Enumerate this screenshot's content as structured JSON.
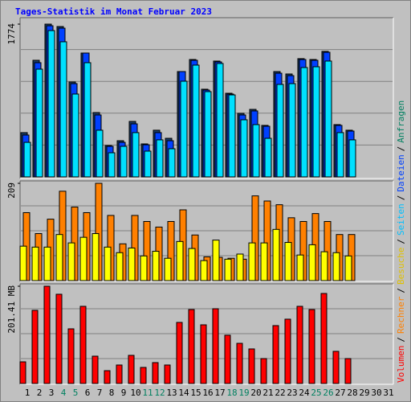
{
  "chart_data": {
    "type": "bar",
    "title": "Tages-Statistik im Monat Februar 2023",
    "title_color": "#0000ff",
    "categories": [
      "1",
      "2",
      "3",
      "4",
      "5",
      "6",
      "7",
      "8",
      "9",
      "10",
      "11",
      "12",
      "13",
      "14",
      "15",
      "16",
      "17",
      "18",
      "19",
      "20",
      "21",
      "22",
      "23",
      "24",
      "25",
      "26",
      "27",
      "28",
      "29",
      "30",
      "31"
    ],
    "category_colors": [
      "#000000",
      "#000000",
      "#000000",
      "#008060",
      "#008060",
      "#000000",
      "#000000",
      "#000000",
      "#000000",
      "#000000",
      "#008060",
      "#008060",
      "#000000",
      "#000000",
      "#000000",
      "#000000",
      "#000000",
      "#008060",
      "#008060",
      "#000000",
      "#000000",
      "#000000",
      "#000000",
      "#000000",
      "#008060",
      "#008060",
      "#000000",
      "#000000",
      "#000000",
      "#000000",
      "#000000"
    ],
    "grid": true,
    "legend_separator": "/",
    "legend_order": [
      [
        2,
        0
      ],
      [
        1,
        0
      ],
      [
        1,
        1
      ],
      [
        0,
        2
      ],
      [
        0,
        1
      ],
      [
        0,
        0
      ]
    ],
    "panels": [
      {
        "ylim": [
          0,
          1774
        ],
        "yticks": [
          1774
        ],
        "series": [
          {
            "name": "Anfragen",
            "color": "#1a3c64",
            "text_color": "#008060",
            "values": [
              514,
              1354,
              1774,
              1746,
              1102,
              1438,
              747,
              364,
              420,
              644,
              383,
              542,
              448,
              1223,
              1363,
              1018,
              1345,
              971,
              738,
              784,
              598,
              1223,
              1195,
              1373,
              1363,
              1457,
              607,
              542,
              null,
              null,
              null
            ]
          },
          {
            "name": "Dateien",
            "color": "#0040ff",
            "text_color": "#0040ff",
            "values": [
              486,
              1326,
              1755,
              1727,
              1083,
              1438,
              719,
              355,
              401,
              616,
              373,
              514,
              420,
              1223,
              1354,
              1008,
              1335,
              962,
              719,
              766,
              588,
              1204,
              1176,
              1363,
              1354,
              1447,
              598,
              532,
              null,
              null,
              null
            ]
          },
          {
            "name": "Seiten",
            "color": "#00e0ff",
            "text_color": "#00c0ff",
            "values": [
              401,
              1251,
              1699,
              1569,
              962,
              1326,
              542,
              280,
              355,
              514,
              299,
              430,
              327,
              1111,
              1298,
              990,
              1317,
              952,
              663,
              607,
              448,
              1074,
              1083,
              1270,
              1279,
              1345,
              514,
              430,
              null,
              null,
              null
            ]
          }
        ]
      },
      {
        "ylim": [
          0,
          209
        ],
        "yticks": [
          209
        ],
        "series": [
          {
            "name": "Rechner",
            "color": "#ff8000",
            "text_color": "#ff8000",
            "values": [
              146,
              101,
              132,
              192,
              158,
              146,
              209,
              140,
              79,
              140,
              127,
              115,
              127,
              152,
              98,
              51,
              50,
              48,
              46,
              182,
              171,
              163,
              135,
              127,
              144,
              127,
              99,
              99,
              null,
              null,
              null
            ]
          },
          {
            "name": "Besuche",
            "color": "#ffff00",
            "text_color": "#e0c000",
            "values": [
              74,
              72,
              72,
              99,
              81,
              93,
              101,
              72,
              60,
              70,
              53,
              63,
              48,
              84,
              69,
              43,
              87,
              46,
              57,
              81,
              81,
              110,
              82,
              55,
              77,
              62,
              60,
              53,
              null,
              null,
              null
            ]
          }
        ]
      },
      {
        "ylim": [
          0,
          201.41
        ],
        "yticks": [
          {
            "value": 201.41,
            "label": "201.41 MB"
          }
        ],
        "series": [
          {
            "name": "Volumen",
            "color": "#ff0000",
            "text_color": "#ff0000",
            "values": [
              44.9,
              151.5,
              201.41,
              184.8,
              113.2,
              159.8,
              56.6,
              26.6,
              38.3,
              58.3,
              33.3,
              43.3,
              38.3,
              126.5,
              153.1,
              121.5,
              154.8,
              100,
              83.2,
              71.6,
              51.6,
              119.9,
              133.2,
              159.8,
              153.1,
              186.4,
              66.6,
              51.6,
              null,
              null,
              null
            ]
          }
        ]
      }
    ]
  }
}
